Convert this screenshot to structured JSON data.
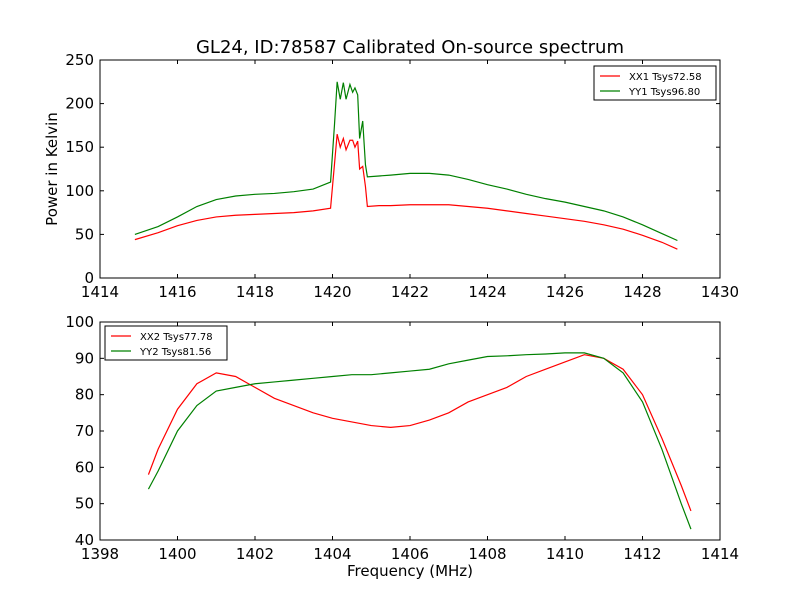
{
  "title": "GL24, ID:78587 Calibrated On-source spectrum",
  "chart_data": [
    {
      "type": "line",
      "ylabel": "Power in Kelvin",
      "xlabel": "",
      "xlim": [
        1414,
        1430
      ],
      "ylim": [
        0,
        250
      ],
      "xticks": [
        1414,
        1416,
        1418,
        1420,
        1422,
        1424,
        1426,
        1428,
        1430
      ],
      "yticks": [
        0,
        50,
        100,
        150,
        200,
        250
      ],
      "grid": false,
      "legend": {
        "placement": "top-right"
      },
      "series": [
        {
          "name": "XX1 Tsys72.58",
          "color": "#ff0000",
          "points": [
            [
              1414.9,
              44
            ],
            [
              1415.5,
              52
            ],
            [
              1416,
              60
            ],
            [
              1416.5,
              66
            ],
            [
              1417,
              70
            ],
            [
              1417.5,
              72
            ],
            [
              1418,
              73
            ],
            [
              1418.5,
              74
            ],
            [
              1419,
              75
            ],
            [
              1419.5,
              77
            ],
            [
              1419.95,
              80
            ],
            [
              1420.05,
              130
            ],
            [
              1420.12,
              165
            ],
            [
              1420.2,
              150
            ],
            [
              1420.28,
              160
            ],
            [
              1420.35,
              147
            ],
            [
              1420.45,
              158
            ],
            [
              1420.52,
              158
            ],
            [
              1420.58,
              150
            ],
            [
              1420.65,
              157
            ],
            [
              1420.7,
              125
            ],
            [
              1420.78,
              128
            ],
            [
              1420.85,
              105
            ],
            [
              1420.9,
              82
            ],
            [
              1421.2,
              83
            ],
            [
              1421.5,
              83
            ],
            [
              1422,
              84
            ],
            [
              1422.5,
              84
            ],
            [
              1423,
              84
            ],
            [
              1423.5,
              82
            ],
            [
              1424,
              80
            ],
            [
              1424.5,
              77
            ],
            [
              1425,
              74
            ],
            [
              1425.5,
              71
            ],
            [
              1426,
              68
            ],
            [
              1426.5,
              65
            ],
            [
              1427,
              61
            ],
            [
              1427.5,
              56
            ],
            [
              1428,
              49
            ],
            [
              1428.5,
              41
            ],
            [
              1428.9,
              33
            ]
          ]
        },
        {
          "name": "YY1 Tsys96.80",
          "color": "#008000",
          "points": [
            [
              1414.9,
              50
            ],
            [
              1415.5,
              59
            ],
            [
              1416,
              70
            ],
            [
              1416.5,
              82
            ],
            [
              1417,
              90
            ],
            [
              1417.5,
              94
            ],
            [
              1418,
              96
            ],
            [
              1418.5,
              97
            ],
            [
              1419,
              99
            ],
            [
              1419.5,
              102
            ],
            [
              1419.95,
              110
            ],
            [
              1420.05,
              175
            ],
            [
              1420.12,
              225
            ],
            [
              1420.2,
              205
            ],
            [
              1420.28,
              224
            ],
            [
              1420.35,
              205
            ],
            [
              1420.45,
              222
            ],
            [
              1420.52,
              213
            ],
            [
              1420.58,
              218
            ],
            [
              1420.65,
              210
            ],
            [
              1420.7,
              160
            ],
            [
              1420.78,
              180
            ],
            [
              1420.85,
              130
            ],
            [
              1420.9,
              116
            ],
            [
              1421.2,
              117
            ],
            [
              1421.5,
              118
            ],
            [
              1422,
              120
            ],
            [
              1422.5,
              120
            ],
            [
              1423,
              118
            ],
            [
              1423.5,
              113
            ],
            [
              1424,
              107
            ],
            [
              1424.5,
              102
            ],
            [
              1425,
              96
            ],
            [
              1425.5,
              91
            ],
            [
              1426,
              87
            ],
            [
              1426.5,
              82
            ],
            [
              1427,
              77
            ],
            [
              1427.5,
              70
            ],
            [
              1428,
              61
            ],
            [
              1428.5,
              51
            ],
            [
              1428.9,
              43
            ]
          ]
        }
      ]
    },
    {
      "type": "line",
      "xlabel": "Frequency (MHz)",
      "ylabel": "",
      "xlim": [
        1398,
        1414
      ],
      "ylim": [
        40,
        100
      ],
      "xticks": [
        1398,
        1400,
        1402,
        1404,
        1406,
        1408,
        1410,
        1412,
        1414
      ],
      "yticks": [
        40,
        50,
        60,
        70,
        80,
        90,
        100
      ],
      "grid": false,
      "legend": {
        "placement": "top-left"
      },
      "series": [
        {
          "name": "XX2 Tsys77.78",
          "color": "#ff0000",
          "points": [
            [
              1399.25,
              58
            ],
            [
              1399.5,
              65
            ],
            [
              1400,
              76
            ],
            [
              1400.5,
              83
            ],
            [
              1401,
              86
            ],
            [
              1401.5,
              85
            ],
            [
              1402,
              82
            ],
            [
              1402.5,
              79
            ],
            [
              1403,
              77
            ],
            [
              1403.5,
              75
            ],
            [
              1404,
              73.5
            ],
            [
              1404.5,
              72.5
            ],
            [
              1405,
              71.5
            ],
            [
              1405.5,
              71
            ],
            [
              1406,
              71.5
            ],
            [
              1406.5,
              73
            ],
            [
              1407,
              75
            ],
            [
              1407.5,
              78
            ],
            [
              1408,
              80
            ],
            [
              1408.5,
              82
            ],
            [
              1409,
              85
            ],
            [
              1409.5,
              87
            ],
            [
              1410,
              89
            ],
            [
              1410.5,
              91
            ],
            [
              1411,
              90
            ],
            [
              1411.5,
              87
            ],
            [
              1412,
              80
            ],
            [
              1412.5,
              68
            ],
            [
              1413,
              55
            ],
            [
              1413.25,
              48
            ]
          ]
        },
        {
          "name": "YY2 Tsys81.56",
          "color": "#008000",
          "points": [
            [
              1399.25,
              54
            ],
            [
              1399.5,
              59
            ],
            [
              1400,
              70
            ],
            [
              1400.5,
              77
            ],
            [
              1401,
              81
            ],
            [
              1401.5,
              82
            ],
            [
              1402,
              83
            ],
            [
              1402.5,
              83.5
            ],
            [
              1403,
              84
            ],
            [
              1403.5,
              84.5
            ],
            [
              1404,
              85
            ],
            [
              1404.5,
              85.5
            ],
            [
              1405,
              85.5
            ],
            [
              1405.5,
              86
            ],
            [
              1406,
              86.5
            ],
            [
              1406.5,
              87
            ],
            [
              1407,
              88.5
            ],
            [
              1407.5,
              89.5
            ],
            [
              1408,
              90.5
            ],
            [
              1408.5,
              90.7
            ],
            [
              1409,
              91
            ],
            [
              1409.5,
              91.2
            ],
            [
              1410,
              91.5
            ],
            [
              1410.5,
              91.5
            ],
            [
              1411,
              90
            ],
            [
              1411.5,
              86
            ],
            [
              1412,
              78
            ],
            [
              1412.5,
              65
            ],
            [
              1413,
              50
            ],
            [
              1413.25,
              43
            ]
          ]
        }
      ]
    }
  ]
}
